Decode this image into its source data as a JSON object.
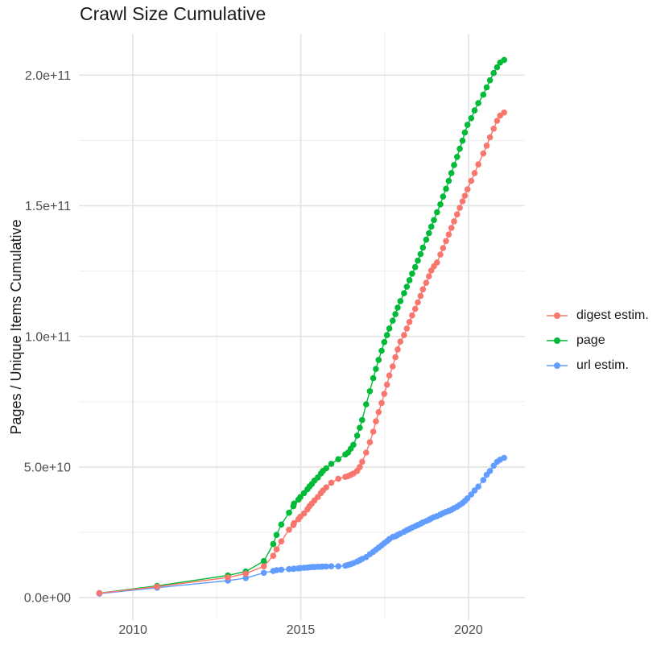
{
  "chart_data": {
    "type": "line",
    "title": "Crawl Size Cumulative",
    "xlabel": "",
    "ylabel": "Pages / Unique Items Cumulative",
    "values_unit": "billions (1e9) of pages / unique items, cumulative per crawl",
    "legend_position": "right",
    "grid": true,
    "background": "#FFFFFF",
    "grid_major_color": "#E3E3E3",
    "grid_minor_color": "#EDEDED",
    "axis_text_color": "#4D4D4D",
    "title_color": "#1A1A1A",
    "xlim": [
      2008.39,
      2021.68
    ],
    "ylim": [
      -8.6,
      215.8
    ],
    "x_ticks": {
      "values": [
        2010,
        2015,
        2020
      ],
      "labels": [
        "2010",
        "2015",
        "2020"
      ],
      "minor": [
        2012.5,
        2017.5
      ]
    },
    "y_ticks": {
      "values": [
        0,
        50,
        100,
        150,
        200
      ],
      "labels": [
        "0.0e+00",
        "5.0e+10",
        "1.0e+11",
        "1.5e+11",
        "2.0e+11"
      ],
      "minor": [
        25,
        75,
        125,
        175
      ]
    },
    "x": [
      2009.0,
      2010.72,
      2012.83,
      2013.36,
      2013.9,
      2014.18,
      2014.28,
      2014.42,
      2014.65,
      2014.78,
      2014.8,
      2014.93,
      2014.99,
      2015.1,
      2015.2,
      2015.26,
      2015.33,
      2015.41,
      2015.51,
      2015.6,
      2015.66,
      2015.76,
      2015.91,
      2016.12,
      2016.33,
      2016.41,
      2016.49,
      2016.57,
      2016.68,
      2016.76,
      2016.83,
      2016.95,
      2017.06,
      2017.16,
      2017.24,
      2017.32,
      2017.41,
      2017.49,
      2017.57,
      2017.64,
      2017.74,
      2017.82,
      2017.89,
      2017.97,
      2018.08,
      2018.16,
      2018.24,
      2018.32,
      2018.41,
      2018.49,
      2018.57,
      2018.64,
      2018.74,
      2018.82,
      2018.89,
      2018.97,
      2019.06,
      2019.16,
      2019.24,
      2019.33,
      2019.41,
      2019.49,
      2019.57,
      2019.66,
      2019.74,
      2019.82,
      2019.89,
      2019.97,
      2020.08,
      2020.18,
      2020.29,
      2020.44,
      2020.54,
      2020.64,
      2020.75,
      2020.85,
      2020.94,
      2021.06
    ],
    "series": [
      {
        "name": "digest estim.",
        "color": "#F8766D",
        "values": [
          1.7,
          4.2,
          7.7,
          9.2,
          12,
          16,
          18.5,
          21.5,
          26,
          27.8,
          28.5,
          30,
          31,
          32.2,
          33.8,
          35,
          36,
          37.2,
          38.5,
          40,
          41,
          42.2,
          44,
          45.5,
          46.2,
          46.5,
          47,
          47.5,
          48.5,
          50,
          52,
          55.5,
          59.5,
          63.5,
          67.5,
          71,
          74.5,
          78,
          81.5,
          85,
          88.5,
          92,
          95,
          98,
          100.5,
          103,
          105.5,
          108,
          110.5,
          113,
          115.5,
          118,
          120.5,
          123,
          125.2,
          126.8,
          128.3,
          131.3,
          133.8,
          136.5,
          139,
          141.5,
          144,
          146.7,
          149.2,
          151.7,
          153.8,
          156.3,
          159.5,
          162.5,
          165.8,
          170,
          173,
          176.2,
          179.5,
          182.5,
          184.5,
          185.7
        ]
      },
      {
        "name": "page",
        "color": "#00BA38",
        "values": [
          1.7,
          4.5,
          8.5,
          10,
          14,
          20.5,
          24,
          28,
          32.5,
          35,
          36,
          37.5,
          38.5,
          40,
          41.5,
          42.5,
          43.5,
          44.8,
          46,
          47.5,
          48.5,
          49.5,
          51.2,
          53,
          54.8,
          55.5,
          57,
          58.5,
          62,
          65,
          68,
          74,
          79,
          84,
          87.5,
          91,
          94.5,
          97.8,
          100.5,
          103,
          106,
          108.5,
          111,
          113.5,
          116.5,
          119,
          121.5,
          124,
          126.5,
          129,
          131.5,
          134,
          137,
          139.5,
          142,
          144.5,
          147.5,
          150.5,
          153.5,
          156.5,
          159.5,
          162.5,
          165.6,
          168.7,
          171.8,
          174.9,
          178,
          181,
          183.5,
          186.5,
          189.3,
          192.5,
          195.3,
          198,
          200.8,
          203,
          204.8,
          205.8
        ]
      },
      {
        "name": "url estim.",
        "color": "#619CFF",
        "values": [
          1.5,
          3.8,
          6.5,
          7.5,
          9.5,
          10.2,
          10.5,
          10.7,
          10.9,
          11,
          11.1,
          11.2,
          11.3,
          11.4,
          11.5,
          11.6,
          11.7,
          11.7,
          11.8,
          11.8,
          11.9,
          11.9,
          12,
          12,
          12.2,
          12.5,
          12.8,
          13.2,
          13.8,
          14.3,
          14.8,
          15.5,
          16.6,
          17.5,
          18.3,
          19.1,
          20,
          20.8,
          21.6,
          22.4,
          23.2,
          23.5,
          24,
          24.5,
          25.2,
          25.8,
          26.3,
          26.8,
          27.3,
          27.8,
          28.3,
          28.8,
          29.3,
          29.8,
          30.3,
          30.8,
          31.2,
          31.8,
          32.3,
          32.8,
          33.2,
          33.6,
          34.2,
          34.8,
          35.5,
          36.2,
          37,
          38,
          39.5,
          41,
          42.5,
          45,
          47,
          48.5,
          50.5,
          52,
          52.8,
          53.5
        ]
      }
    ],
    "draw_order": [
      1,
      2,
      0
    ]
  }
}
